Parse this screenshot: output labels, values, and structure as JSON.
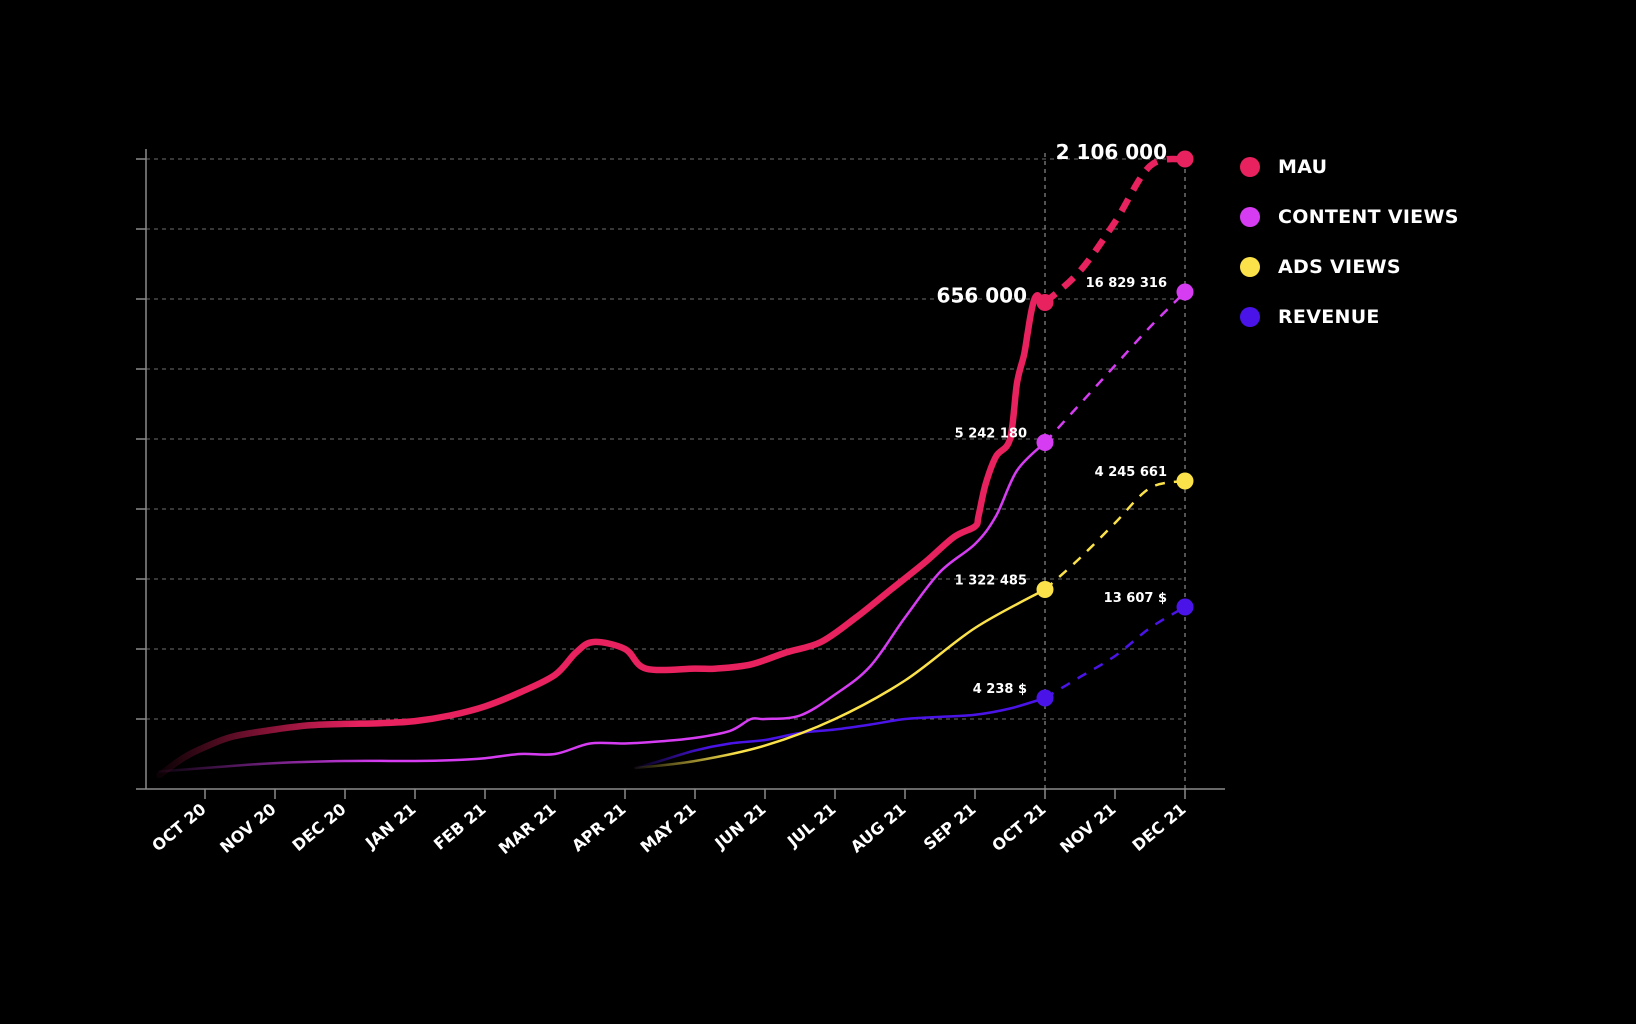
{
  "chart_data": {
    "type": "line",
    "categories": [
      "OCT 20",
      "NOV 20",
      "DEC 20",
      "JAN 21",
      "FEB 21",
      "MAR 21",
      "APR 21",
      "MAY 21",
      "JUN 21",
      "JUL 21",
      "AUG 21",
      "SEP 21",
      "OCT 21",
      "NOV 21",
      "DEC 21"
    ],
    "y_range": [
      0,
      9
    ],
    "grid": true,
    "legend_position": "right",
    "series": [
      {
        "name": "MAU",
        "color": "#e8215f",
        "x": [
          -0.65,
          -0.3,
          0,
          0.4,
          1,
          1.5,
          2,
          2.5,
          3,
          3.5,
          4,
          4.5,
          5,
          5.3,
          5.55,
          6,
          6.3,
          7,
          7.3,
          7.8,
          8.3,
          8.8,
          9.3,
          9.8,
          10.3,
          10.7,
          11,
          11.05,
          11.15,
          11.3,
          11.5,
          11.6,
          11.7,
          11.75,
          11.8,
          11.85,
          11.9,
          11.95
        ],
        "y": [
          0.2,
          0.45,
          0.6,
          0.75,
          0.85,
          0.91,
          0.93,
          0.94,
          0.97,
          1.05,
          1.18,
          1.38,
          1.63,
          1.95,
          2.1,
          2.0,
          1.72,
          1.72,
          1.72,
          1.78,
          1.95,
          2.1,
          2.45,
          2.85,
          3.25,
          3.6,
          3.75,
          3.9,
          4.35,
          4.75,
          5.0,
          5.8,
          6.2,
          6.5,
          6.8,
          7.0,
          7.05,
          6.95
        ],
        "projected": {
          "x": [
            12,
            12.5,
            13,
            13.5,
            14
          ],
          "y": [
            6.95,
            7.4,
            8.1,
            8.9,
            9.0
          ]
        },
        "labels": [
          {
            "text": "656 000",
            "at": 12
          },
          {
            "text": "2 106 000",
            "at": 14
          }
        ]
      },
      {
        "name": "CONTENT VIEWS",
        "color": "#d63df2",
        "x": [
          -0.65,
          0,
          1,
          2,
          3,
          3.5,
          4,
          4.5,
          5,
          5.5,
          6,
          6.5,
          7,
          7.5,
          7.8,
          8,
          8.5,
          9,
          9.5,
          10,
          10.5,
          11,
          11.3,
          11.6,
          12
        ],
        "y": [
          0.25,
          0.3,
          0.37,
          0.4,
          0.4,
          0.41,
          0.44,
          0.5,
          0.5,
          0.65,
          0.65,
          0.68,
          0.73,
          0.83,
          1.0,
          1.0,
          1.05,
          1.35,
          1.75,
          2.45,
          3.1,
          3.5,
          3.9,
          4.55,
          4.95
        ],
        "projected": {
          "x": [
            12,
            12.5,
            13,
            13.5,
            14
          ],
          "y": [
            4.95,
            5.5,
            6.05,
            6.6,
            7.1
          ]
        },
        "labels": [
          {
            "text": "5 242 180",
            "at": 12
          },
          {
            "text": "16 829 316",
            "at": 14
          }
        ]
      },
      {
        "name": "ADS VIEWS",
        "color": "#fbe24a",
        "x": [
          6.15,
          7,
          8,
          9,
          10,
          11,
          12
        ],
        "y": [
          0.3,
          0.4,
          0.62,
          1.0,
          1.55,
          2.3,
          2.85
        ],
        "projected": {
          "x": [
            12,
            12.5,
            13,
            13.5,
            14
          ],
          "y": [
            2.85,
            3.3,
            3.8,
            4.3,
            4.4
          ]
        },
        "labels": [
          {
            "text": "1 322 485",
            "at": 12
          },
          {
            "text": "4 245 661",
            "at": 14
          }
        ]
      },
      {
        "name": "REVENUE",
        "color": "#4a14e8",
        "x": [
          6.15,
          6.5,
          7,
          7.5,
          8,
          8.5,
          9,
          9.5,
          10,
          10.5,
          11,
          11.5,
          12
        ],
        "y": [
          0.3,
          0.4,
          0.55,
          0.65,
          0.7,
          0.8,
          0.85,
          0.92,
          1.0,
          1.03,
          1.06,
          1.15,
          1.3
        ],
        "projected": {
          "x": [
            12,
            12.5,
            13,
            13.5,
            14
          ],
          "y": [
            1.3,
            1.6,
            1.9,
            2.3,
            2.6
          ]
        },
        "labels": [
          {
            "text": "4 238 $",
            "at": 12
          },
          {
            "text": "13 607 $",
            "at": 14
          }
        ]
      }
    ]
  },
  "legend": {
    "items": [
      {
        "label": "MAU",
        "color": "#e8215f"
      },
      {
        "label": "CONTENT VIEWS",
        "color": "#d63df2"
      },
      {
        "label": "ADS VIEWS",
        "color": "#fbe24a"
      },
      {
        "label": "REVENUE",
        "color": "#4a14e8"
      }
    ]
  }
}
